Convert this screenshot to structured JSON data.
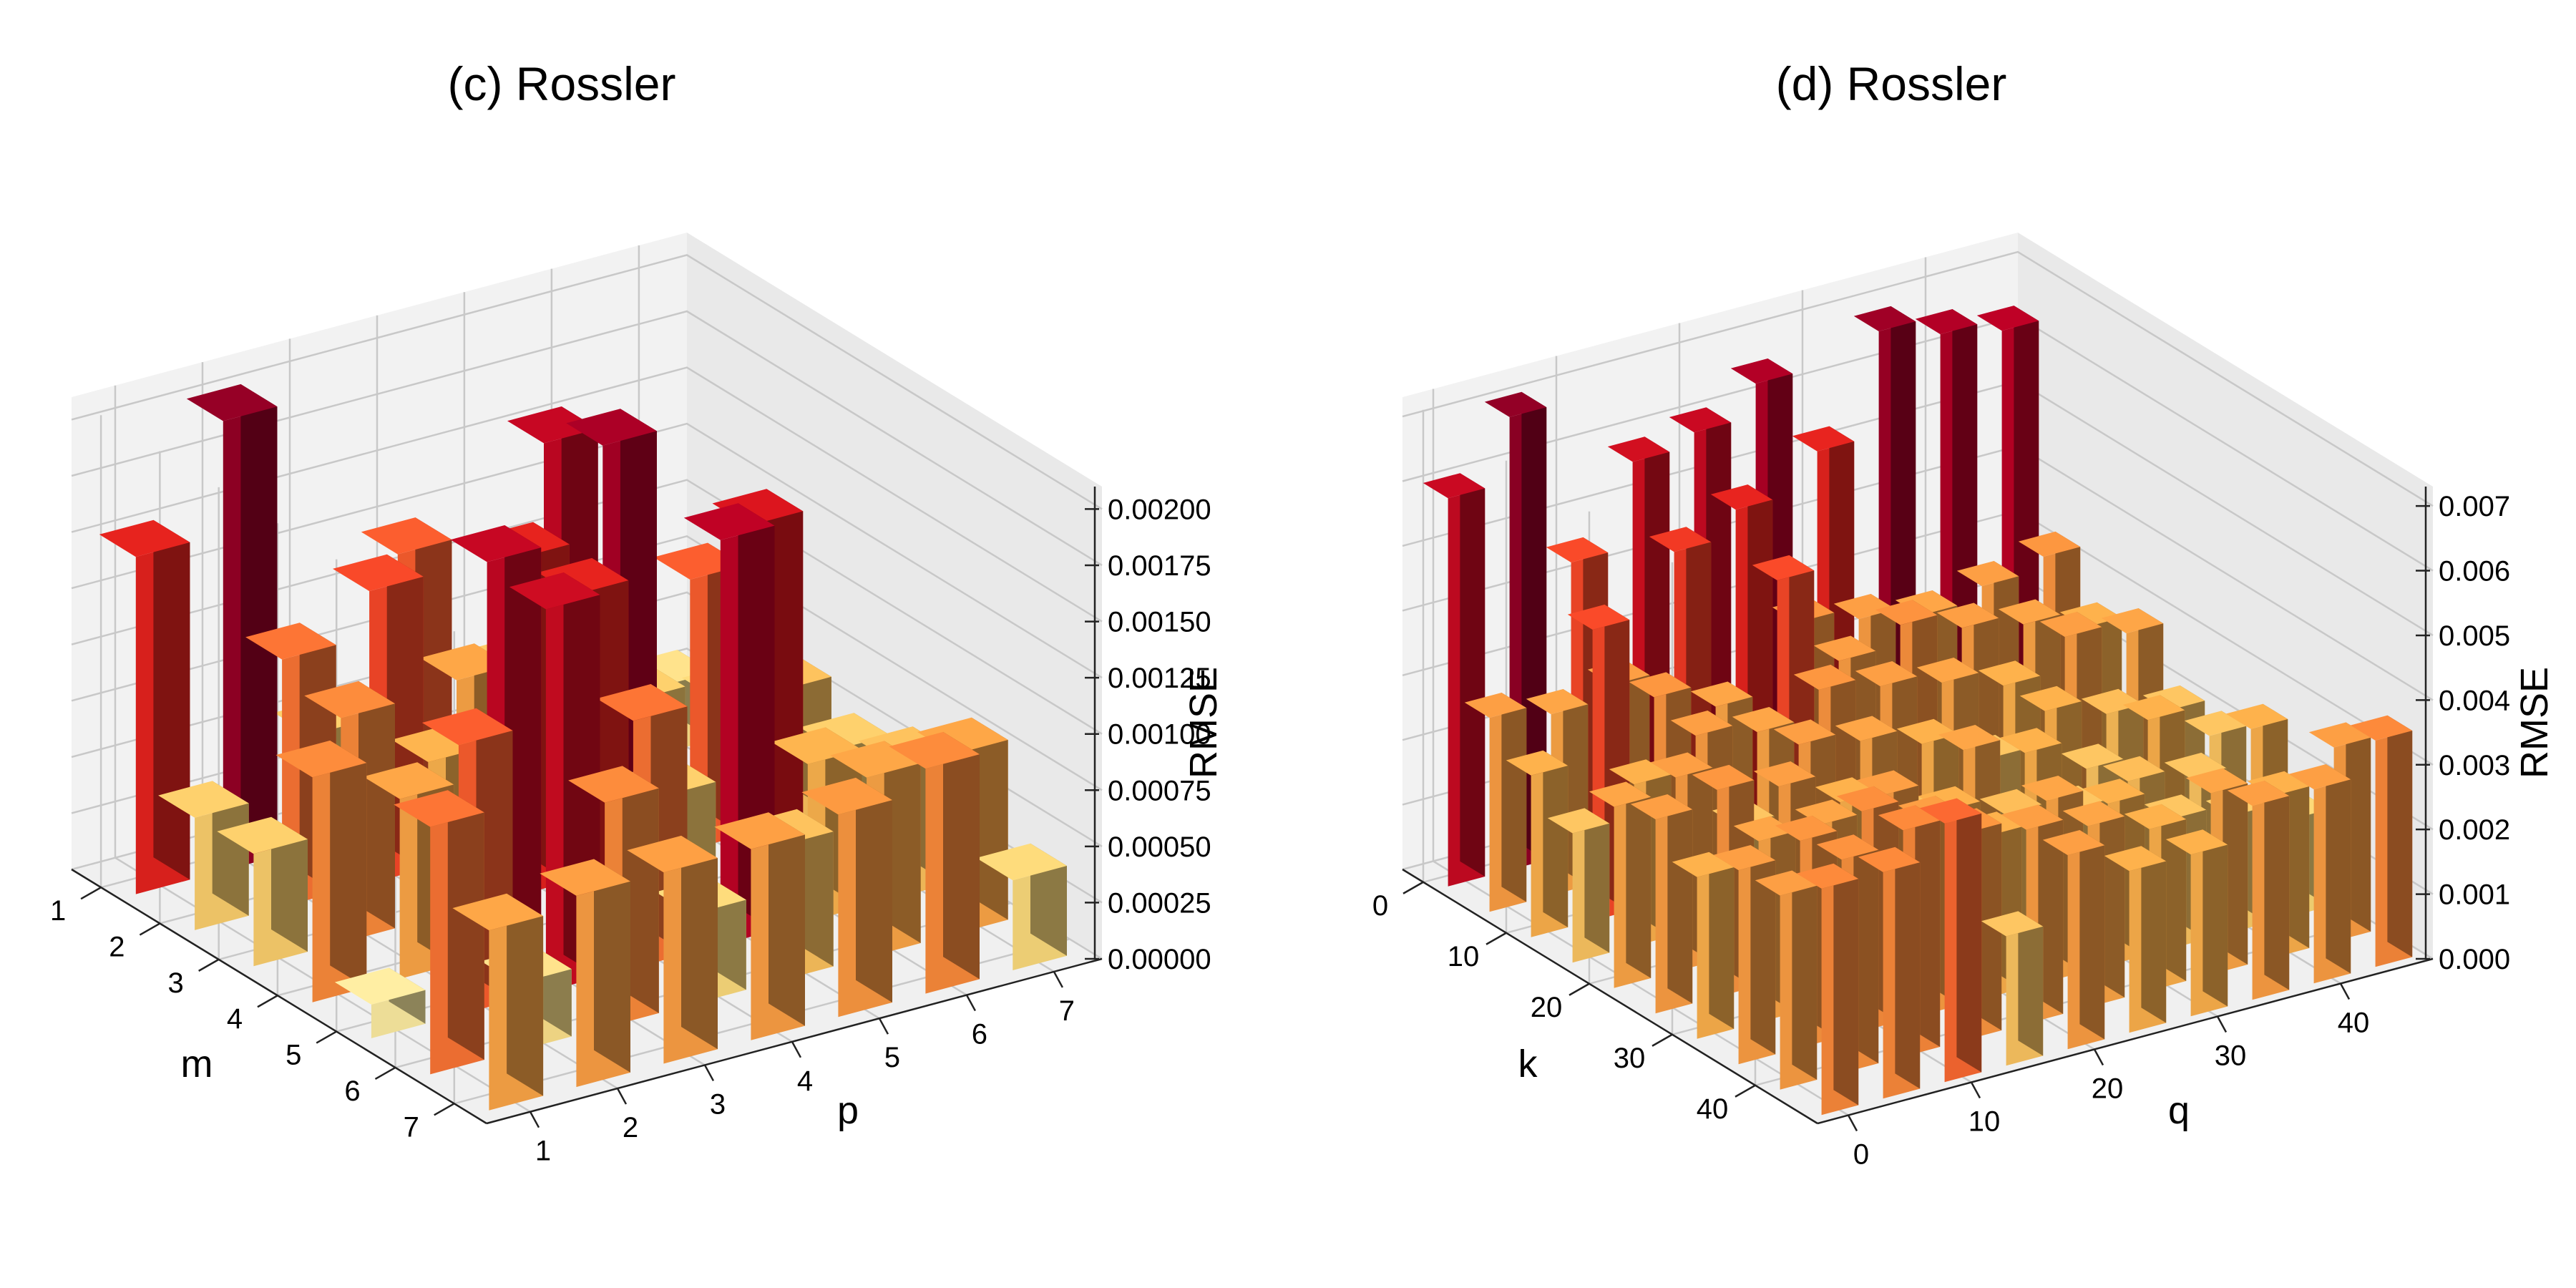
{
  "chart_data": [
    {
      "type": "bar3d",
      "title": "(c) Rossler",
      "xlabel": "m",
      "ylabel": "p",
      "zlabel": "RMSE",
      "x_ticks": [
        "1",
        "2",
        "3",
        "4",
        "5",
        "6",
        "7"
      ],
      "y_ticks": [
        "1",
        "2",
        "3",
        "4",
        "5",
        "6",
        "7"
      ],
      "z_ticks": [
        "0.00000",
        "0.00025",
        "0.00050",
        "0.00075",
        "0.00100",
        "0.00125",
        "0.00150",
        "0.00175",
        "0.00200"
      ],
      "zlim": [
        0,
        0.0021
      ],
      "grid": true,
      "colormap": "YlOrRd",
      "bars": [
        {
          "x": 1,
          "y": 1,
          "z": 0.0015
        },
        {
          "x": 1,
          "y": 2,
          "z": 0.002
        },
        {
          "x": 1,
          "y": 3,
          "z": 0.0005
        },
        {
          "x": 1,
          "y": 4,
          "z": 0.0012
        },
        {
          "x": 1,
          "y": 5,
          "z": 0.00055
        },
        {
          "x": 1,
          "y": 6,
          "z": 0.0004
        },
        {
          "x": 1,
          "y": 7,
          "z": 0.0003
        },
        {
          "x": 2,
          "y": 1,
          "z": 0.0005
        },
        {
          "x": 2,
          "y": 2,
          "z": 0.0011
        },
        {
          "x": 2,
          "y": 3,
          "z": 0.0013
        },
        {
          "x": 2,
          "y": 4,
          "z": 0.0008
        },
        {
          "x": 2,
          "y": 5,
          "z": 0.00175
        },
        {
          "x": 2,
          "y": 6,
          "z": 0.0005
        },
        {
          "x": 2,
          "y": 7,
          "z": 0.0004
        },
        {
          "x": 3,
          "y": 1,
          "z": 0.0005
        },
        {
          "x": 3,
          "y": 2,
          "z": 0.001
        },
        {
          "x": 3,
          "y": 3,
          "z": 0.0007
        },
        {
          "x": 3,
          "y": 4,
          "z": 0.0015
        },
        {
          "x": 3,
          "y": 5,
          "z": 0.0019
        },
        {
          "x": 3,
          "y": 6,
          "z": 0.0012
        },
        {
          "x": 3,
          "y": 7,
          "z": 0.0006
        },
        {
          "x": 4,
          "y": 1,
          "z": 0.001
        },
        {
          "x": 4,
          "y": 2,
          "z": 0.0008
        },
        {
          "x": 4,
          "y": 3,
          "z": 0.00175
        },
        {
          "x": 4,
          "y": 4,
          "z": 0.0015
        },
        {
          "x": 4,
          "y": 5,
          "z": 0.0005
        },
        {
          "x": 4,
          "y": 6,
          "z": 0.0016
        },
        {
          "x": 4,
          "y": 7,
          "z": 0.0005
        },
        {
          "x": 5,
          "y": 1,
          "z": 0.00015
        },
        {
          "x": 5,
          "y": 2,
          "z": 0.0012
        },
        {
          "x": 5,
          "y": 3,
          "z": 0.0017
        },
        {
          "x": 5,
          "y": 4,
          "z": 0.0011
        },
        {
          "x": 5,
          "y": 5,
          "z": 0.0018
        },
        {
          "x": 5,
          "y": 6,
          "z": 0.0007
        },
        {
          "x": 5,
          "y": 7,
          "z": 0.0006
        },
        {
          "x": 6,
          "y": 1,
          "z": 0.0011
        },
        {
          "x": 6,
          "y": 2,
          "z": 0.0003
        },
        {
          "x": 6,
          "y": 3,
          "z": 0.001
        },
        {
          "x": 6,
          "y": 4,
          "z": 0.0004
        },
        {
          "x": 6,
          "y": 5,
          "z": 0.0006
        },
        {
          "x": 6,
          "y": 6,
          "z": 0.0008
        },
        {
          "x": 6,
          "y": 7,
          "z": 0.0008
        },
        {
          "x": 7,
          "y": 1,
          "z": 0.0008
        },
        {
          "x": 7,
          "y": 2,
          "z": 0.00085
        },
        {
          "x": 7,
          "y": 3,
          "z": 0.00085
        },
        {
          "x": 7,
          "y": 4,
          "z": 0.00085
        },
        {
          "x": 7,
          "y": 5,
          "z": 0.0009
        },
        {
          "x": 7,
          "y": 6,
          "z": 0.001
        },
        {
          "x": 7,
          "y": 7,
          "z": 0.0004
        }
      ]
    },
    {
      "type": "bar3d",
      "title": "(d) Rossler",
      "xlabel": "k",
      "ylabel": "q",
      "zlabel": "RMSE",
      "x_ticks": [
        "0",
        "10",
        "20",
        "30",
        "40"
      ],
      "y_ticks": [
        "0",
        "10",
        "20",
        "30",
        "40"
      ],
      "z_ticks": [
        "0.000",
        "0.001",
        "0.002",
        "0.003",
        "0.004",
        "0.005",
        "0.006",
        "0.007"
      ],
      "zlim": [
        0,
        0.0073
      ],
      "grid": true,
      "colormap": "YlOrRd",
      "bars": [
        {
          "x": 0,
          "y": 0,
          "z": 0.006
        },
        {
          "x": 0,
          "y": 5,
          "z": 0.007
        },
        {
          "x": 0,
          "y": 10,
          "z": 0.0045
        },
        {
          "x": 0,
          "y": 15,
          "z": 0.0058
        },
        {
          "x": 0,
          "y": 20,
          "z": 0.006
        },
        {
          "x": 0,
          "y": 25,
          "z": 0.0065
        },
        {
          "x": 0,
          "y": 30,
          "z": 0.0052
        },
        {
          "x": 0,
          "y": 35,
          "z": 0.0068
        },
        {
          "x": 0,
          "y": 40,
          "z": 0.0065
        },
        {
          "x": 0,
          "y": 45,
          "z": 0.0063
        },
        {
          "x": 5,
          "y": 0,
          "z": 0.003
        },
        {
          "x": 5,
          "y": 5,
          "z": 0.0028
        },
        {
          "x": 5,
          "y": 10,
          "z": 0.003
        },
        {
          "x": 5,
          "y": 15,
          "z": 0.0048
        },
        {
          "x": 5,
          "y": 20,
          "z": 0.0052
        },
        {
          "x": 5,
          "y": 25,
          "z": 0.0032
        },
        {
          "x": 5,
          "y": 30,
          "z": 0.003
        },
        {
          "x": 5,
          "y": 35,
          "z": 0.0028
        },
        {
          "x": 5,
          "y": 40,
          "z": 0.003
        },
        {
          "x": 5,
          "y": 45,
          "z": 0.0032
        },
        {
          "x": 10,
          "y": 0,
          "z": 0.0025
        },
        {
          "x": 10,
          "y": 5,
          "z": 0.0045
        },
        {
          "x": 10,
          "y": 10,
          "z": 0.0032
        },
        {
          "x": 10,
          "y": 15,
          "z": 0.0028
        },
        {
          "x": 10,
          "y": 20,
          "z": 0.0045
        },
        {
          "x": 10,
          "y": 25,
          "z": 0.003
        },
        {
          "x": 10,
          "y": 30,
          "z": 0.0033
        },
        {
          "x": 10,
          "y": 35,
          "z": 0.003
        },
        {
          "x": 10,
          "y": 40,
          "z": 0.0028
        },
        {
          "x": 10,
          "y": 45,
          "z": 0.0025
        },
        {
          "x": 15,
          "y": 0,
          "z": 0.002
        },
        {
          "x": 15,
          "y": 5,
          "z": 0.0025
        },
        {
          "x": 15,
          "y": 10,
          "z": 0.003
        },
        {
          "x": 15,
          "y": 15,
          "z": 0.0028
        },
        {
          "x": 15,
          "y": 20,
          "z": 0.0032
        },
        {
          "x": 15,
          "y": 25,
          "z": 0.003
        },
        {
          "x": 15,
          "y": 30,
          "z": 0.0028
        },
        {
          "x": 15,
          "y": 35,
          "z": 0.0025
        },
        {
          "x": 15,
          "y": 40,
          "z": 0.003
        },
        {
          "x": 15,
          "y": 45,
          "z": 0.0028
        },
        {
          "x": 20,
          "y": 0,
          "z": 0.0028
        },
        {
          "x": 20,
          "y": 5,
          "z": 0.003
        },
        {
          "x": 20,
          "y": 10,
          "z": 0.002
        },
        {
          "x": 20,
          "y": 15,
          "z": 0.003
        },
        {
          "x": 20,
          "y": 20,
          "z": 0.0028
        },
        {
          "x": 20,
          "y": 25,
          "z": 0.0025
        },
        {
          "x": 20,
          "y": 30,
          "z": 0.002
        },
        {
          "x": 20,
          "y": 35,
          "z": 0.0025
        },
        {
          "x": 20,
          "y": 40,
          "z": 0.0022
        },
        {
          "x": 20,
          "y": 45,
          "z": 0.002
        },
        {
          "x": 25,
          "y": 0,
          "z": 0.003
        },
        {
          "x": 25,
          "y": 5,
          "z": 0.0032
        },
        {
          "x": 25,
          "y": 10,
          "z": 0.003
        },
        {
          "x": 25,
          "y": 15,
          "z": 0.0025
        },
        {
          "x": 25,
          "y": 20,
          "z": 0.002
        },
        {
          "x": 25,
          "y": 25,
          "z": 0.0028
        },
        {
          "x": 25,
          "y": 30,
          "z": 0.0025
        },
        {
          "x": 25,
          "y": 35,
          "z": 0.002
        },
        {
          "x": 25,
          "y": 40,
          "z": 0.0025
        },
        {
          "x": 25,
          "y": 45,
          "z": 0.002
        },
        {
          "x": 30,
          "y": 0,
          "z": 0.0025
        },
        {
          "x": 30,
          "y": 5,
          "z": 0.0028
        },
        {
          "x": 30,
          "y": 10,
          "z": 0.0028
        },
        {
          "x": 30,
          "y": 15,
          "z": 0.003
        },
        {
          "x": 30,
          "y": 20,
          "z": 0.0025
        },
        {
          "x": 30,
          "y": 25,
          "z": 0.0022
        },
        {
          "x": 30,
          "y": 30,
          "z": 0.002
        },
        {
          "x": 30,
          "y": 35,
          "z": 0.0022
        },
        {
          "x": 30,
          "y": 40,
          "z": 0.002
        },
        {
          "x": 30,
          "y": 45,
          "z": 0.0025
        },
        {
          "x": 35,
          "y": 0,
          "z": 0.003
        },
        {
          "x": 35,
          "y": 5,
          "z": 0.0032
        },
        {
          "x": 35,
          "y": 10,
          "z": 0.0034
        },
        {
          "x": 35,
          "y": 15,
          "z": 0.003
        },
        {
          "x": 35,
          "y": 20,
          "z": 0.0025
        },
        {
          "x": 35,
          "y": 25,
          "z": 0.0028
        },
        {
          "x": 35,
          "y": 30,
          "z": 0.0025
        },
        {
          "x": 35,
          "y": 35,
          "z": 0.002
        },
        {
          "x": 35,
          "y": 40,
          "z": 0.0018
        },
        {
          "x": 35,
          "y": 45,
          "z": 0.0015
        },
        {
          "x": 40,
          "y": 0,
          "z": 0.003
        },
        {
          "x": 40,
          "y": 5,
          "z": 0.0033
        },
        {
          "x": 40,
          "y": 10,
          "z": 0.0035
        },
        {
          "x": 40,
          "y": 15,
          "z": 0.0032
        },
        {
          "x": 40,
          "y": 20,
          "z": 0.003
        },
        {
          "x": 40,
          "y": 25,
          "z": 0.0028
        },
        {
          "x": 40,
          "y": 30,
          "z": 0.0025
        },
        {
          "x": 40,
          "y": 35,
          "z": 0.0028
        },
        {
          "x": 40,
          "y": 40,
          "z": 0.0025
        },
        {
          "x": 40,
          "y": 45,
          "z": 0.003
        },
        {
          "x": 45,
          "y": 0,
          "z": 0.0035
        },
        {
          "x": 45,
          "y": 5,
          "z": 0.0035
        },
        {
          "x": 45,
          "y": 10,
          "z": 0.004
        },
        {
          "x": 45,
          "y": 15,
          "z": 0.002
        },
        {
          "x": 45,
          "y": 20,
          "z": 0.003
        },
        {
          "x": 45,
          "y": 25,
          "z": 0.0025
        },
        {
          "x": 45,
          "y": 30,
          "z": 0.0025
        },
        {
          "x": 45,
          "y": 35,
          "z": 0.003
        },
        {
          "x": 45,
          "y": 40,
          "z": 0.003
        },
        {
          "x": 45,
          "y": 45,
          "z": 0.0035
        }
      ]
    }
  ]
}
